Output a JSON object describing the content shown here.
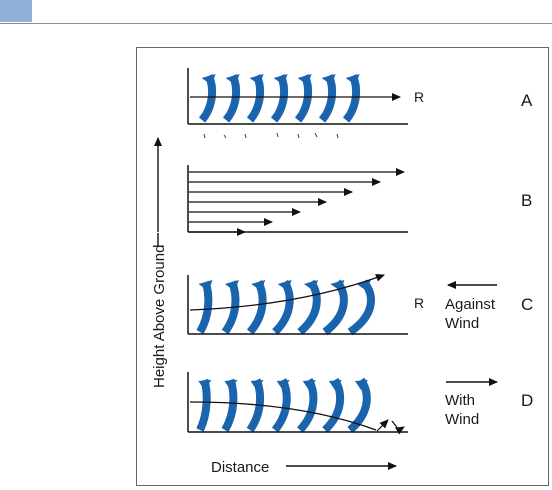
{
  "colors": {
    "accent_tab": "#8fb0d8",
    "wave": "#1a63ad",
    "line": "#111111",
    "frame": "#666666",
    "header_rule": "#8c8c8c"
  },
  "figure": {
    "y_axis_label": "Height Above Ground",
    "x_axis_label": "Distance",
    "panels": [
      {
        "letter": "A",
        "ray_label": "R"
      },
      {
        "letter": "B"
      },
      {
        "letter": "C",
        "ray_label": "R",
        "wind_label_line1": "Against",
        "wind_label_line2": "Wind",
        "wind_direction": "left"
      },
      {
        "letter": "D",
        "wind_label_line1": "With",
        "wind_label_line2": "Wind",
        "wind_direction": "right"
      }
    ]
  }
}
